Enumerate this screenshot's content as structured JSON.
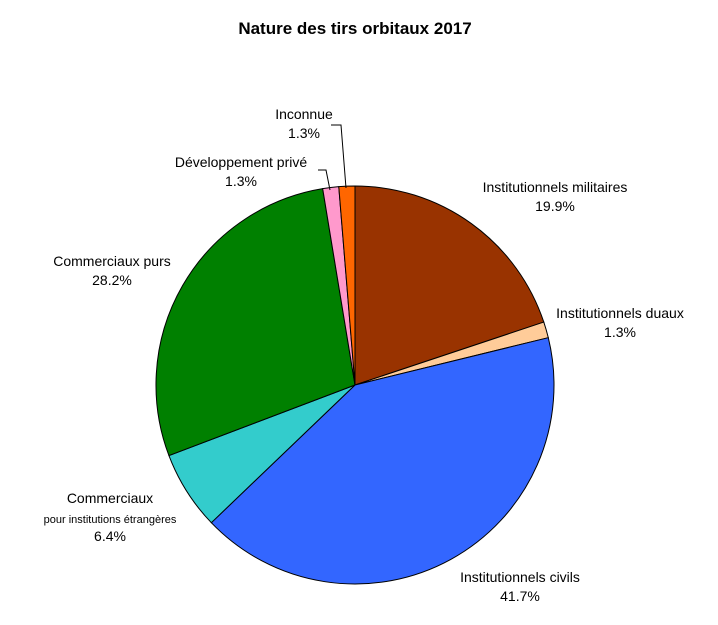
{
  "chart_data": {
    "type": "pie",
    "title": "Nature des tirs orbitaux 2017",
    "start_angle_deg": 90,
    "direction": "clockwise",
    "slices": [
      {
        "name": "Institutionnels militaires",
        "sublabel": "",
        "value": 19.9,
        "value_label": "19.9%",
        "color": "#993300"
      },
      {
        "name": "Institutionnels duaux",
        "sublabel": "",
        "value": 1.3,
        "value_label": "1.3%",
        "color": "#FFCC99"
      },
      {
        "name": "Institutionnels civils",
        "sublabel": "",
        "value": 41.7,
        "value_label": "41.7%",
        "color": "#3366FF"
      },
      {
        "name": "Commerciaux",
        "sublabel": "pour institutions étrangères",
        "value": 6.4,
        "value_label": "6.4%",
        "color": "#33CCCC"
      },
      {
        "name": "Commerciaux purs",
        "sublabel": "",
        "value": 28.2,
        "value_label": "28.2%",
        "color": "#008000"
      },
      {
        "name": "Développement privé",
        "sublabel": "",
        "value": 1.3,
        "value_label": "1.3%",
        "color": "#FF99CC"
      },
      {
        "name": "Inconnue",
        "sublabel": "",
        "value": 1.3,
        "value_label": "1.3%",
        "color": "#FF6600"
      }
    ]
  }
}
